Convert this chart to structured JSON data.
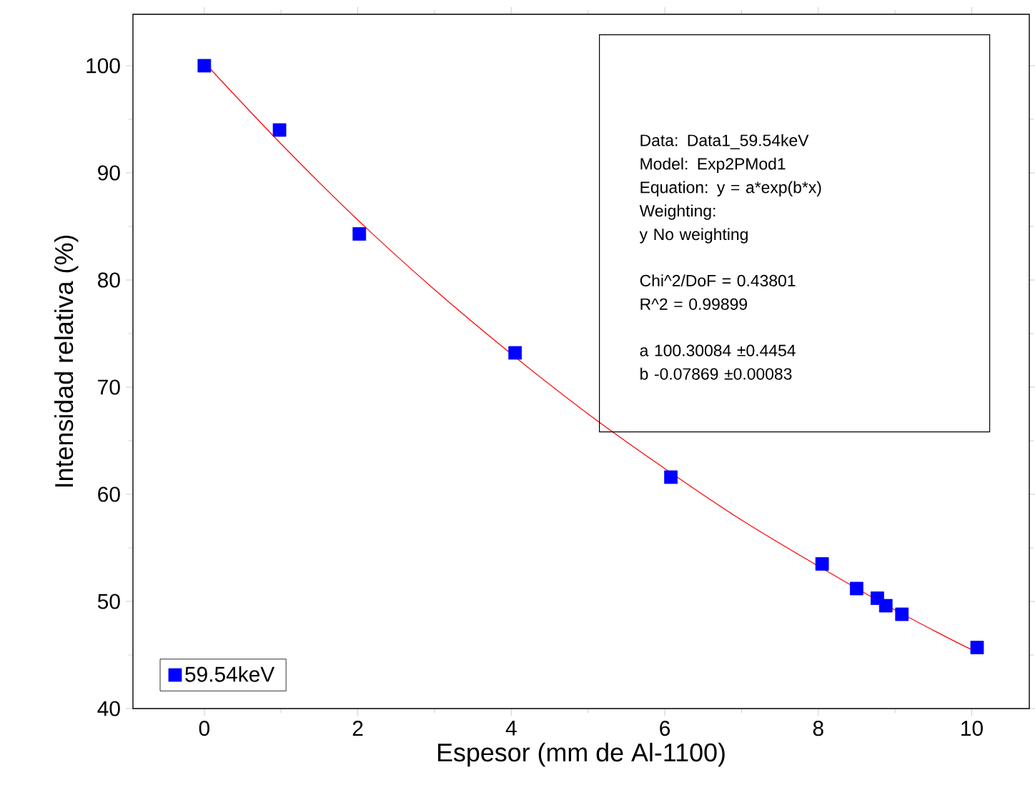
{
  "chart_data": {
    "type": "scatter",
    "xlabel": "Espesor (mm de Al-1100)",
    "ylabel": "Intensidad relativa (%)",
    "xlim": [
      -0.93,
      10.75
    ],
    "ylim": [
      40,
      104.8
    ],
    "xticks": [
      0,
      2,
      4,
      6,
      8,
      10
    ],
    "yticks": [
      40,
      50,
      60,
      70,
      80,
      90,
      100
    ],
    "marker": "square",
    "legend": "bottom left",
    "grid": false,
    "series": [
      {
        "name": "59.54keV",
        "color": "#0000ff",
        "x": [
          0,
          0.98,
          2.02,
          4.05,
          6.08,
          8.05,
          8.5,
          8.77,
          8.88,
          9.09,
          10.07
        ],
        "values": [
          100,
          94,
          84.3,
          73.2,
          61.6,
          53.5,
          51.2,
          50.3,
          49.6,
          48.8,
          45.7
        ]
      },
      {
        "type": "line",
        "marker": "none",
        "color": "#ff0000",
        "x": [
          0,
          1,
          2,
          3,
          4,
          5,
          6,
          7,
          8,
          9,
          10,
          10.07
        ],
        "values": [
          100.3,
          92.7,
          85.6,
          79.1,
          73.1,
          67.5,
          62.4,
          57.6,
          53.3,
          49.2,
          45.5,
          45.7
        ]
      }
    ],
    "annotations": [
      "Data: Data1_59.54keV",
      "Model: Exp2PMod1",
      "Equation: y = a*exp(b*x)",
      "Weighting:",
      "y          No weighting",
      "Chi^2/DoF        = 0.43801",
      "R^2     =  0.99899",
      "a          100.30084        ±0.4454",
      "b          -0.07869          ±0.00083"
    ]
  }
}
